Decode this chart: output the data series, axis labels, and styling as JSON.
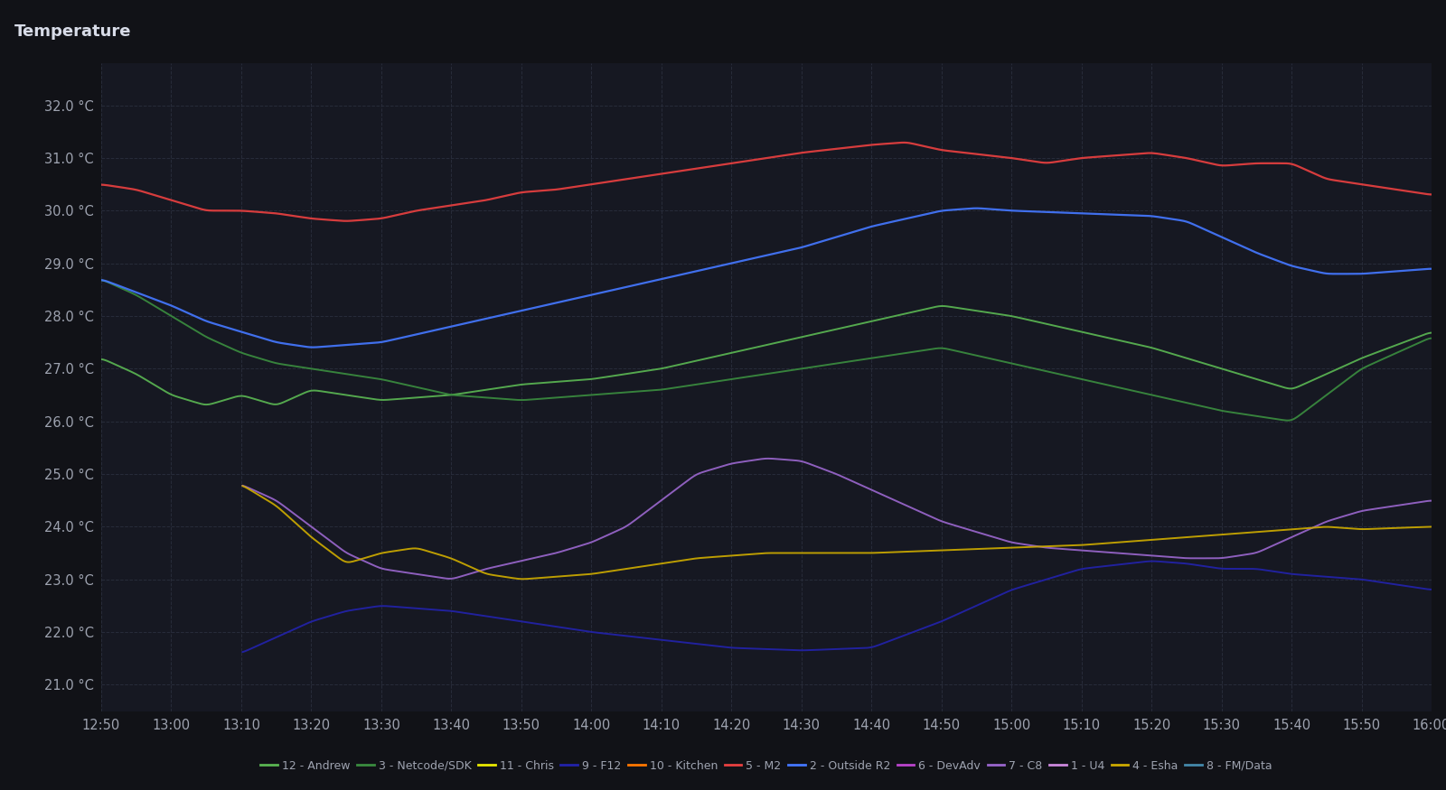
{
  "title": "Temperature",
  "background_color": "#111217",
  "plot_bg_color": "#161822",
  "grid_color": "#2a2e3d",
  "text_color": "#9ea3b0",
  "title_color": "#d8dce8",
  "ylim": [
    20.5,
    32.8
  ],
  "yticks": [
    21.0,
    22.0,
    23.0,
    24.0,
    25.0,
    26.0,
    27.0,
    28.0,
    29.0,
    30.0,
    31.0,
    32.0
  ],
  "x_labels": [
    "12:50",
    "13:00",
    "13:10",
    "13:20",
    "13:30",
    "13:40",
    "13:50",
    "14:00",
    "14:10",
    "14:20",
    "14:30",
    "14:40",
    "14:50",
    "15:00",
    "15:10",
    "15:20",
    "15:30",
    "15:40",
    "15:50",
    "16:00"
  ],
  "series": [
    {
      "label": "12 - Andrew",
      "color": "#5ab552",
      "lw": 1.4,
      "kp_x": [
        0,
        5,
        10,
        15,
        20,
        25,
        30,
        40,
        50,
        60,
        70,
        80,
        90,
        100,
        110,
        120,
        130,
        140,
        150,
        160,
        170,
        180,
        190
      ],
      "kp_y": [
        27.2,
        26.9,
        26.5,
        26.3,
        26.5,
        26.3,
        26.6,
        26.4,
        26.5,
        26.7,
        26.8,
        27.0,
        27.3,
        27.6,
        27.9,
        28.2,
        28.0,
        27.7,
        27.4,
        27.0,
        26.6,
        27.2,
        27.7
      ]
    },
    {
      "label": "3 - Netcode/SDK",
      "color": "#3a8c3f",
      "lw": 1.4,
      "kp_x": [
        0,
        5,
        10,
        15,
        20,
        25,
        30,
        40,
        50,
        60,
        70,
        80,
        90,
        100,
        110,
        120,
        130,
        140,
        150,
        160,
        170,
        180,
        190
      ],
      "kp_y": [
        28.7,
        28.4,
        28.0,
        27.6,
        27.3,
        27.1,
        27.0,
        26.8,
        26.5,
        26.4,
        26.5,
        26.6,
        26.8,
        27.0,
        27.2,
        27.4,
        27.1,
        26.8,
        26.5,
        26.2,
        26.0,
        27.0,
        27.6
      ]
    },
    {
      "label": "11 - Chris",
      "color": "#e8e800",
      "lw": 1.4,
      "kp_x": [],
      "kp_y": []
    },
    {
      "label": "9 - F12",
      "color": "#2222aa",
      "lw": 1.4,
      "kp_x": [
        20,
        25,
        30,
        35,
        40,
        50,
        60,
        70,
        80,
        90,
        100,
        110,
        120,
        130,
        140,
        150,
        155,
        160,
        165,
        170,
        175,
        180,
        185,
        190
      ],
      "kp_y": [
        21.6,
        21.9,
        22.2,
        22.4,
        22.5,
        22.4,
        22.2,
        22.0,
        21.85,
        21.7,
        21.65,
        21.7,
        22.2,
        22.8,
        23.2,
        23.35,
        23.3,
        23.2,
        23.2,
        23.1,
        23.05,
        23.0,
        22.9,
        22.8
      ]
    },
    {
      "label": "10 - Kitchen",
      "color": "#ff7700",
      "lw": 1.4,
      "kp_x": [],
      "kp_y": []
    },
    {
      "label": "5 - M2",
      "color": "#e84040",
      "lw": 1.6,
      "kp_x": [
        0,
        5,
        10,
        15,
        20,
        25,
        30,
        35,
        40,
        45,
        50,
        55,
        60,
        65,
        70,
        80,
        90,
        100,
        110,
        115,
        120,
        130,
        135,
        140,
        150,
        155,
        160,
        165,
        170,
        175,
        180,
        185,
        190
      ],
      "kp_y": [
        30.5,
        30.4,
        30.2,
        30.0,
        30.0,
        29.95,
        29.85,
        29.8,
        29.85,
        30.0,
        30.1,
        30.2,
        30.35,
        30.4,
        30.5,
        30.7,
        30.9,
        31.1,
        31.25,
        31.3,
        31.15,
        31.0,
        30.9,
        31.0,
        31.1,
        31.0,
        30.85,
        30.9,
        30.9,
        30.6,
        30.5,
        30.4,
        30.3
      ]
    },
    {
      "label": "2 - Outside R2",
      "color": "#4477ff",
      "lw": 1.6,
      "kp_x": [
        0,
        5,
        10,
        15,
        20,
        25,
        30,
        40,
        50,
        60,
        70,
        80,
        90,
        100,
        110,
        120,
        125,
        130,
        140,
        150,
        155,
        160,
        165,
        170,
        175,
        180,
        185,
        190
      ],
      "kp_y": [
        28.7,
        28.45,
        28.2,
        27.9,
        27.7,
        27.5,
        27.4,
        27.5,
        27.8,
        28.1,
        28.4,
        28.7,
        29.0,
        29.3,
        29.7,
        30.0,
        30.05,
        30.0,
        29.95,
        29.9,
        29.8,
        29.5,
        29.2,
        28.95,
        28.8,
        28.8,
        28.85,
        28.9
      ]
    },
    {
      "label": "6 - DevAdv",
      "color": "#bb44cc",
      "lw": 1.4,
      "kp_x": [],
      "kp_y": []
    },
    {
      "label": "7 - C8",
      "color": "#9966cc",
      "lw": 1.4,
      "kp_x": [
        20,
        25,
        30,
        35,
        40,
        45,
        50,
        55,
        60,
        65,
        70,
        75,
        80,
        85,
        90,
        95,
        100,
        105,
        110,
        115,
        120,
        125,
        130,
        135,
        140,
        145,
        150,
        155,
        160,
        165,
        170,
        175,
        180,
        185,
        190
      ],
      "kp_y": [
        24.8,
        24.5,
        24.0,
        23.5,
        23.2,
        23.1,
        23.0,
        23.2,
        23.35,
        23.5,
        23.7,
        24.0,
        24.5,
        25.0,
        25.2,
        25.3,
        25.25,
        25.0,
        24.7,
        24.4,
        24.1,
        23.9,
        23.7,
        23.6,
        23.55,
        23.5,
        23.45,
        23.4,
        23.4,
        23.5,
        23.8,
        24.1,
        24.3,
        24.4,
        24.5
      ]
    },
    {
      "label": "1 - U4",
      "color": "#cc88dd",
      "lw": 1.4,
      "kp_x": [],
      "kp_y": []
    },
    {
      "label": "4 - Esha",
      "color": "#ccaa00",
      "lw": 1.4,
      "kp_x": [
        20,
        25,
        30,
        35,
        40,
        45,
        50,
        55,
        60,
        65,
        70,
        75,
        80,
        85,
        90,
        95,
        100,
        110,
        120,
        130,
        140,
        150,
        155,
        160,
        165,
        170,
        175,
        180,
        190
      ],
      "kp_y": [
        24.8,
        24.4,
        23.8,
        23.3,
        23.5,
        23.6,
        23.4,
        23.1,
        23.0,
        23.05,
        23.1,
        23.2,
        23.3,
        23.4,
        23.45,
        23.5,
        23.5,
        23.5,
        23.55,
        23.6,
        23.65,
        23.75,
        23.8,
        23.85,
        23.9,
        23.95,
        24.0,
        23.95,
        24.0
      ]
    },
    {
      "label": "8 - FM/Data",
      "color": "#4488aa",
      "lw": 1.4,
      "kp_x": [],
      "kp_y": []
    }
  ]
}
